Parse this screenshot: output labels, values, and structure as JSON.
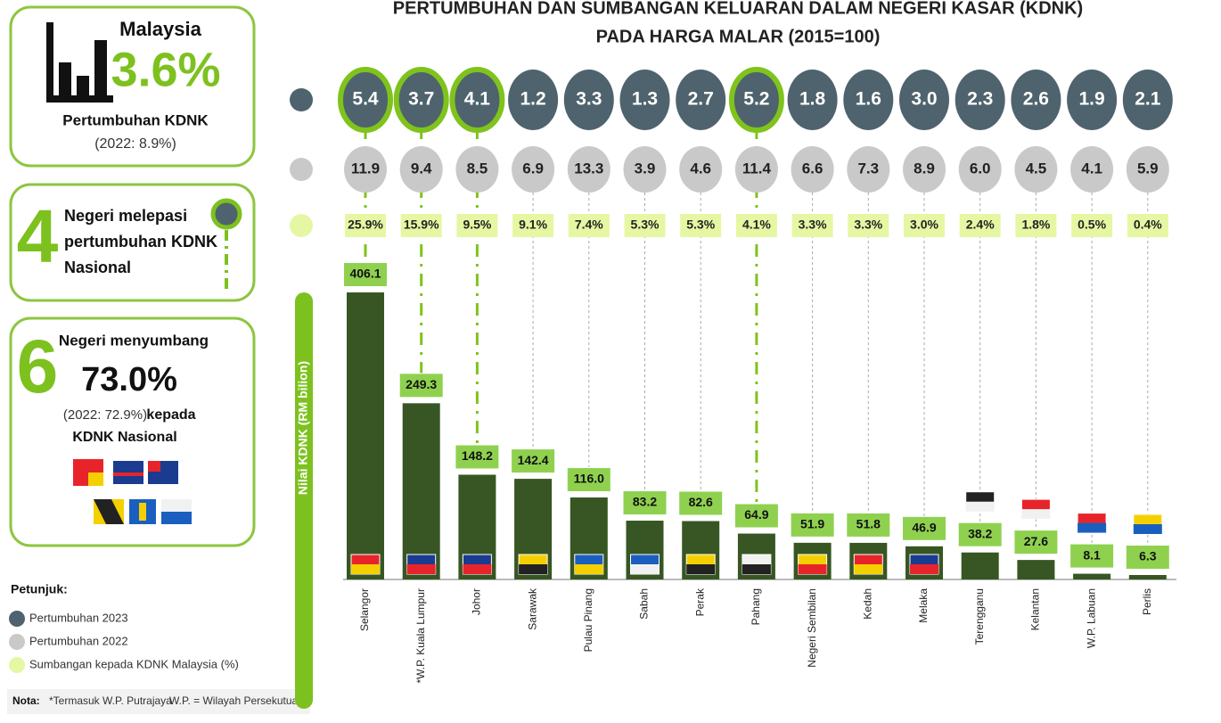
{
  "chart_data": {
    "type": "bar",
    "title": [
      "PERTUMBUHAN DAN SUMBANGAN KELUARAN DALAM NEGERI KASAR (KDNK)",
      "PADA HARGA MALAR (2015=100)"
    ],
    "y_label": "Nilai KDNK (RM bilion)",
    "categories": [
      "Selangor",
      "*W.P. Kuala Lumpur",
      "Johor",
      "Sarawak",
      "Pulau Pinang",
      "Sabah",
      "Perak",
      "Pahang",
      "Negeri Sembilan",
      "Kedah",
      "Melaka",
      "Terengganu",
      "Kelantan",
      "W.P. Labuan",
      "Perlis"
    ],
    "values": [
      406.1,
      249.3,
      148.2,
      142.4,
      116.0,
      83.2,
      82.6,
      64.9,
      51.9,
      51.8,
      46.9,
      38.2,
      27.6,
      8.1,
      6.3
    ],
    "value_labels": [
      "406.1",
      "249.3",
      "148.2",
      "142.4",
      "116.0",
      "83.2",
      "82.6",
      "64.9",
      "51.9",
      "51.8",
      "46.9",
      "38.2",
      "27.6",
      "8.1",
      "6.3"
    ],
    "color": "#375623",
    "label_color": "#8fd14f",
    "highlight_color": "#7fc31c",
    "ylim": [
      0,
      420
    ],
    "series": [
      {
        "name": "Pertumbuhan 2023",
        "color": "#4e636d",
        "values": [
          5.4,
          3.7,
          4.1,
          1.2,
          3.3,
          1.3,
          2.7,
          5.2,
          1.8,
          1.6,
          3.0,
          2.3,
          2.6,
          1.9,
          2.1
        ],
        "value_labels": [
          "5.4",
          "3.7",
          "4.1",
          "1.2",
          "3.3",
          "1.3",
          "2.7",
          "5.2",
          "1.8",
          "1.6",
          "3.0",
          "2.3",
          "2.6",
          "1.9",
          "2.1"
        ]
      },
      {
        "name": "Pertumbuhan 2022",
        "color": "#c9c9c9",
        "values": [
          11.9,
          9.4,
          8.5,
          6.9,
          13.3,
          3.9,
          4.6,
          11.4,
          6.6,
          7.3,
          8.9,
          6.0,
          4.5,
          4.1,
          5.9
        ],
        "value_labels": [
          "11.9",
          "9.4",
          "8.5",
          "6.9",
          "13.3",
          "3.9",
          "4.6",
          "11.4",
          "6.6",
          "7.3",
          "8.9",
          "6.0",
          "4.5",
          "4.1",
          "5.9"
        ]
      },
      {
        "name": "Sumbangan kepada KDNK Malaysia (%)",
        "color": "#e6f7a3",
        "values": [
          25.9,
          15.9,
          9.5,
          9.1,
          7.4,
          5.3,
          5.3,
          4.1,
          3.3,
          3.3,
          3.0,
          2.4,
          1.8,
          0.5,
          0.4
        ],
        "value_labels": [
          "25.9%",
          "15.9%",
          "9.5%",
          "9.1%",
          "7.4%",
          "5.3%",
          "5.3%",
          "4.1%",
          "3.3%",
          "3.3%",
          "3.0%",
          "2.4%",
          "1.8%",
          "0.5%",
          "0.4%"
        ]
      }
    ]
  },
  "panels": {
    "national": {
      "country": "Malaysia",
      "growth": {
        "value": 3.6,
        "label": "3.6%"
      },
      "label": "Pertumbuhan KDNK",
      "previous": "(2022: 8.9%)"
    },
    "above": {
      "count": "4",
      "lines": [
        "Negeri melepasi",
        "pertumbuhan KDNK",
        "Nasional"
      ]
    },
    "contribution": {
      "count": "6",
      "line1": "Negeri menyumbang",
      "share": "73.0%",
      "previous": "(2022: 72.9%)",
      "line2": "kepada",
      "line3": "KDNK Nasional"
    }
  },
  "legend": {
    "title": "Petunjuk:"
  },
  "note": {
    "label": "Nota:",
    "text1": "*Termasuk W.P. Putrajaya",
    "text2": "W.P. = Wilayah Persekutuan"
  }
}
